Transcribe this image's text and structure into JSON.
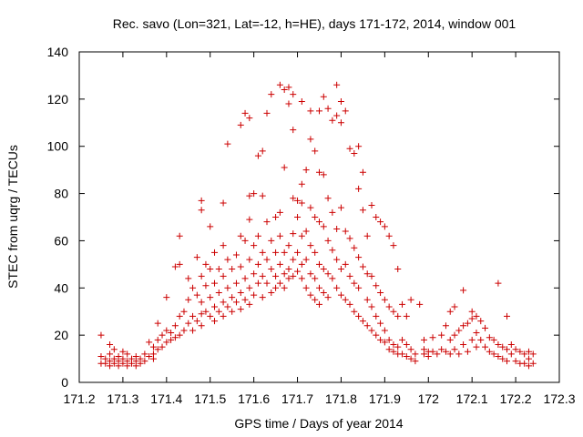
{
  "chart_data": {
    "type": "scatter",
    "title": "Rec. savo (Lon=321, Lat=-12, h=HE), days 171-172, 2014, window 001",
    "xlabel": "GPS time / Days of year 2014",
    "ylabel": "STEC from uqrg / TECUs",
    "xlim": [
      171.2,
      172.3
    ],
    "ylim": [
      0,
      140
    ],
    "x_ticks": [
      "171.2",
      "171.3",
      "171.4",
      "171.5",
      "171.6",
      "171.7",
      "171.8",
      "171.9",
      "172",
      "172.1",
      "172.2",
      "172.3"
    ],
    "y_ticks": [
      "0",
      "20",
      "40",
      "60",
      "80",
      "100",
      "120",
      "140"
    ],
    "grid": false,
    "marker": "+",
    "color": "#cc0000",
    "points": [
      [
        171.25,
        20
      ],
      [
        171.25,
        11
      ],
      [
        171.25,
        8
      ],
      [
        171.26,
        10
      ],
      [
        171.26,
        8
      ],
      [
        171.27,
        16
      ],
      [
        171.27,
        12
      ],
      [
        171.27,
        9
      ],
      [
        171.27,
        7
      ],
      [
        171.28,
        14
      ],
      [
        171.28,
        10
      ],
      [
        171.28,
        8
      ],
      [
        171.29,
        11
      ],
      [
        171.29,
        9
      ],
      [
        171.29,
        7
      ],
      [
        171.3,
        13
      ],
      [
        171.3,
        10
      ],
      [
        171.3,
        8
      ],
      [
        171.31,
        12
      ],
      [
        171.31,
        9
      ],
      [
        171.31,
        7
      ],
      [
        171.32,
        10
      ],
      [
        171.32,
        8
      ],
      [
        171.33,
        11
      ],
      [
        171.33,
        9
      ],
      [
        171.33,
        7
      ],
      [
        171.34,
        10
      ],
      [
        171.34,
        8
      ],
      [
        171.35,
        12
      ],
      [
        171.35,
        9
      ],
      [
        171.36,
        17
      ],
      [
        171.36,
        11
      ],
      [
        171.37,
        15
      ],
      [
        171.37,
        12
      ],
      [
        171.37,
        10
      ],
      [
        171.38,
        25
      ],
      [
        171.38,
        18
      ],
      [
        171.38,
        14
      ],
      [
        171.39,
        20
      ],
      [
        171.39,
        15
      ],
      [
        171.4,
        36
      ],
      [
        171.4,
        22
      ],
      [
        171.4,
        17
      ],
      [
        171.41,
        18
      ],
      [
        171.41,
        21
      ],
      [
        171.42,
        49
      ],
      [
        171.42,
        24
      ],
      [
        171.42,
        19
      ],
      [
        171.43,
        62
      ],
      [
        171.43,
        50
      ],
      [
        171.43,
        28
      ],
      [
        171.43,
        20
      ],
      [
        171.44,
        30
      ],
      [
        171.44,
        22
      ],
      [
        171.45,
        44
      ],
      [
        171.45,
        35
      ],
      [
        171.45,
        25
      ],
      [
        171.46,
        40
      ],
      [
        171.46,
        28
      ],
      [
        171.46,
        22
      ],
      [
        171.47,
        53
      ],
      [
        171.47,
        37
      ],
      [
        171.47,
        26
      ],
      [
        171.48,
        77
      ],
      [
        171.48,
        73
      ],
      [
        171.48,
        45
      ],
      [
        171.48,
        34
      ],
      [
        171.48,
        29
      ],
      [
        171.48,
        24
      ],
      [
        171.49,
        50
      ],
      [
        171.49,
        41
      ],
      [
        171.49,
        30
      ],
      [
        171.5,
        66
      ],
      [
        171.5,
        48
      ],
      [
        171.5,
        36
      ],
      [
        171.5,
        28
      ],
      [
        171.51,
        55
      ],
      [
        171.51,
        42
      ],
      [
        171.51,
        32
      ],
      [
        171.51,
        26
      ],
      [
        171.52,
        48
      ],
      [
        171.52,
        38
      ],
      [
        171.52,
        30
      ],
      [
        171.53,
        76
      ],
      [
        171.53,
        58
      ],
      [
        171.53,
        45
      ],
      [
        171.53,
        34
      ],
      [
        171.53,
        28
      ],
      [
        171.54,
        101
      ],
      [
        171.54,
        52
      ],
      [
        171.54,
        40
      ],
      [
        171.54,
        32
      ],
      [
        171.55,
        48
      ],
      [
        171.55,
        36
      ],
      [
        171.55,
        30
      ],
      [
        171.56,
        54
      ],
      [
        171.56,
        42
      ],
      [
        171.56,
        34
      ],
      [
        171.57,
        109
      ],
      [
        171.57,
        62
      ],
      [
        171.57,
        49
      ],
      [
        171.57,
        38
      ],
      [
        171.57,
        31
      ],
      [
        171.58,
        114
      ],
      [
        171.58,
        60
      ],
      [
        171.58,
        44
      ],
      [
        171.58,
        35
      ],
      [
        171.59,
        112
      ],
      [
        171.59,
        79
      ],
      [
        171.59,
        69
      ],
      [
        171.59,
        52
      ],
      [
        171.59,
        40
      ],
      [
        171.59,
        33
      ],
      [
        171.6,
        80
      ],
      [
        171.6,
        58
      ],
      [
        171.6,
        46
      ],
      [
        171.6,
        37
      ],
      [
        171.61,
        96
      ],
      [
        171.61,
        62
      ],
      [
        171.61,
        50
      ],
      [
        171.61,
        42
      ],
      [
        171.62,
        98
      ],
      [
        171.62,
        79
      ],
      [
        171.62,
        55
      ],
      [
        171.62,
        45
      ],
      [
        171.62,
        36
      ],
      [
        171.63,
        114
      ],
      [
        171.63,
        68
      ],
      [
        171.63,
        52
      ],
      [
        171.63,
        42
      ],
      [
        171.64,
        122
      ],
      [
        171.64,
        60
      ],
      [
        171.64,
        48
      ],
      [
        171.64,
        38
      ],
      [
        171.65,
        70
      ],
      [
        171.65,
        55
      ],
      [
        171.65,
        45
      ],
      [
        171.65,
        40
      ],
      [
        171.66,
        126
      ],
      [
        171.66,
        72
      ],
      [
        171.66,
        62
      ],
      [
        171.66,
        50
      ],
      [
        171.66,
        42
      ],
      [
        171.67,
        124
      ],
      [
        171.67,
        91
      ],
      [
        171.67,
        55
      ],
      [
        171.67,
        46
      ],
      [
        171.67,
        40
      ],
      [
        171.68,
        125
      ],
      [
        171.68,
        118
      ],
      [
        171.68,
        58
      ],
      [
        171.68,
        48
      ],
      [
        171.68,
        44
      ],
      [
        171.69,
        122
      ],
      [
        171.69,
        107
      ],
      [
        171.69,
        78
      ],
      [
        171.69,
        63
      ],
      [
        171.69,
        52
      ],
      [
        171.69,
        45
      ],
      [
        171.7,
        77
      ],
      [
        171.7,
        70
      ],
      [
        171.7,
        55
      ],
      [
        171.7,
        47
      ],
      [
        171.71,
        119
      ],
      [
        171.71,
        84
      ],
      [
        171.71,
        76
      ],
      [
        171.71,
        62
      ],
      [
        171.71,
        50
      ],
      [
        171.71,
        44
      ],
      [
        171.72,
        90
      ],
      [
        171.72,
        64
      ],
      [
        171.72,
        52
      ],
      [
        171.72,
        40
      ],
      [
        171.73,
        115
      ],
      [
        171.73,
        103
      ],
      [
        171.73,
        74
      ],
      [
        171.73,
        58
      ],
      [
        171.73,
        46
      ],
      [
        171.73,
        37
      ],
      [
        171.74,
        98
      ],
      [
        171.74,
        70
      ],
      [
        171.74,
        55
      ],
      [
        171.74,
        44
      ],
      [
        171.74,
        35
      ],
      [
        171.75,
        115
      ],
      [
        171.75,
        89
      ],
      [
        171.75,
        68
      ],
      [
        171.75,
        50
      ],
      [
        171.75,
        40
      ],
      [
        171.75,
        33
      ],
      [
        171.76,
        121
      ],
      [
        171.76,
        88
      ],
      [
        171.76,
        66
      ],
      [
        171.76,
        48
      ],
      [
        171.76,
        38
      ],
      [
        171.77,
        116
      ],
      [
        171.77,
        78
      ],
      [
        171.77,
        60
      ],
      [
        171.77,
        46
      ],
      [
        171.77,
        36
      ],
      [
        171.78,
        111
      ],
      [
        171.78,
        72
      ],
      [
        171.78,
        56
      ],
      [
        171.78,
        44
      ],
      [
        171.79,
        126
      ],
      [
        171.79,
        113
      ],
      [
        171.79,
        65
      ],
      [
        171.79,
        52
      ],
      [
        171.79,
        40
      ],
      [
        171.8,
        119
      ],
      [
        171.8,
        110
      ],
      [
        171.8,
        74
      ],
      [
        171.8,
        48
      ],
      [
        171.8,
        37
      ],
      [
        171.81,
        115
      ],
      [
        171.81,
        64
      ],
      [
        171.81,
        50
      ],
      [
        171.81,
        35
      ],
      [
        171.82,
        99
      ],
      [
        171.82,
        61
      ],
      [
        171.82,
        45
      ],
      [
        171.82,
        33
      ],
      [
        171.83,
        97
      ],
      [
        171.83,
        57
      ],
      [
        171.83,
        42
      ],
      [
        171.83,
        30
      ],
      [
        171.84,
        100
      ],
      [
        171.84,
        82
      ],
      [
        171.84,
        53
      ],
      [
        171.84,
        40
      ],
      [
        171.84,
        28
      ],
      [
        171.85,
        89
      ],
      [
        171.85,
        73
      ],
      [
        171.85,
        49
      ],
      [
        171.85,
        26
      ],
      [
        171.86,
        62
      ],
      [
        171.86,
        46
      ],
      [
        171.86,
        35
      ],
      [
        171.86,
        24
      ],
      [
        171.87,
        75
      ],
      [
        171.87,
        45
      ],
      [
        171.87,
        32
      ],
      [
        171.87,
        22
      ],
      [
        171.88,
        70
      ],
      [
        171.88,
        41
      ],
      [
        171.88,
        28
      ],
      [
        171.88,
        20
      ],
      [
        171.89,
        68
      ],
      [
        171.89,
        38
      ],
      [
        171.89,
        25
      ],
      [
        171.89,
        18
      ],
      [
        171.9,
        66
      ],
      [
        171.9,
        35
      ],
      [
        171.9,
        22
      ],
      [
        171.9,
        17
      ],
      [
        171.91,
        62
      ],
      [
        171.91,
        32
      ],
      [
        171.91,
        18
      ],
      [
        171.91,
        14
      ],
      [
        171.92,
        58
      ],
      [
        171.92,
        30
      ],
      [
        171.92,
        16
      ],
      [
        171.92,
        13
      ],
      [
        171.93,
        48
      ],
      [
        171.93,
        28
      ],
      [
        171.93,
        15
      ],
      [
        171.93,
        12
      ],
      [
        171.94,
        33
      ],
      [
        171.94,
        18
      ],
      [
        171.94,
        12
      ],
      [
        171.95,
        28
      ],
      [
        171.95,
        16
      ],
      [
        171.95,
        11
      ],
      [
        171.96,
        35
      ],
      [
        171.96,
        14
      ],
      [
        171.96,
        10
      ],
      [
        171.97,
        12
      ],
      [
        171.97,
        9
      ],
      [
        171.98,
        33
      ],
      [
        171.99,
        18
      ],
      [
        171.99,
        14
      ],
      [
        171.99,
        12
      ],
      [
        172.0,
        13
      ],
      [
        172.0,
        11
      ],
      [
        172.01,
        19
      ],
      [
        172.01,
        13
      ],
      [
        172.02,
        12
      ],
      [
        172.03,
        20
      ],
      [
        172.03,
        14
      ],
      [
        172.04,
        24
      ],
      [
        172.04,
        13
      ],
      [
        172.05,
        30
      ],
      [
        172.05,
        18
      ],
      [
        172.05,
        12
      ],
      [
        172.06,
        32
      ],
      [
        172.06,
        20
      ],
      [
        172.06,
        14
      ],
      [
        172.07,
        22
      ],
      [
        172.07,
        12
      ],
      [
        172.08,
        39
      ],
      [
        172.08,
        24
      ],
      [
        172.08,
        16
      ],
      [
        172.09,
        25
      ],
      [
        172.09,
        13
      ],
      [
        172.1,
        30
      ],
      [
        172.1,
        27
      ],
      [
        172.1,
        18
      ],
      [
        172.11,
        28
      ],
      [
        172.11,
        21
      ],
      [
        172.11,
        15
      ],
      [
        172.12,
        26
      ],
      [
        172.12,
        18
      ],
      [
        172.13,
        23
      ],
      [
        172.13,
        15
      ],
      [
        172.14,
        19
      ],
      [
        172.14,
        13
      ],
      [
        172.15,
        18
      ],
      [
        172.15,
        12
      ],
      [
        172.16,
        42
      ],
      [
        172.16,
        16
      ],
      [
        172.16,
        11
      ],
      [
        172.17,
        15
      ],
      [
        172.17,
        10
      ],
      [
        172.18,
        28
      ],
      [
        172.18,
        14
      ],
      [
        172.18,
        9
      ],
      [
        172.19,
        16
      ],
      [
        172.19,
        12
      ],
      [
        172.2,
        14
      ],
      [
        172.2,
        9
      ],
      [
        172.21,
        13
      ],
      [
        172.21,
        8
      ],
      [
        172.22,
        12
      ],
      [
        172.22,
        8
      ],
      [
        172.23,
        13
      ],
      [
        172.23,
        10
      ],
      [
        172.23,
        7
      ],
      [
        172.24,
        12
      ],
      [
        172.24,
        8
      ]
    ]
  }
}
